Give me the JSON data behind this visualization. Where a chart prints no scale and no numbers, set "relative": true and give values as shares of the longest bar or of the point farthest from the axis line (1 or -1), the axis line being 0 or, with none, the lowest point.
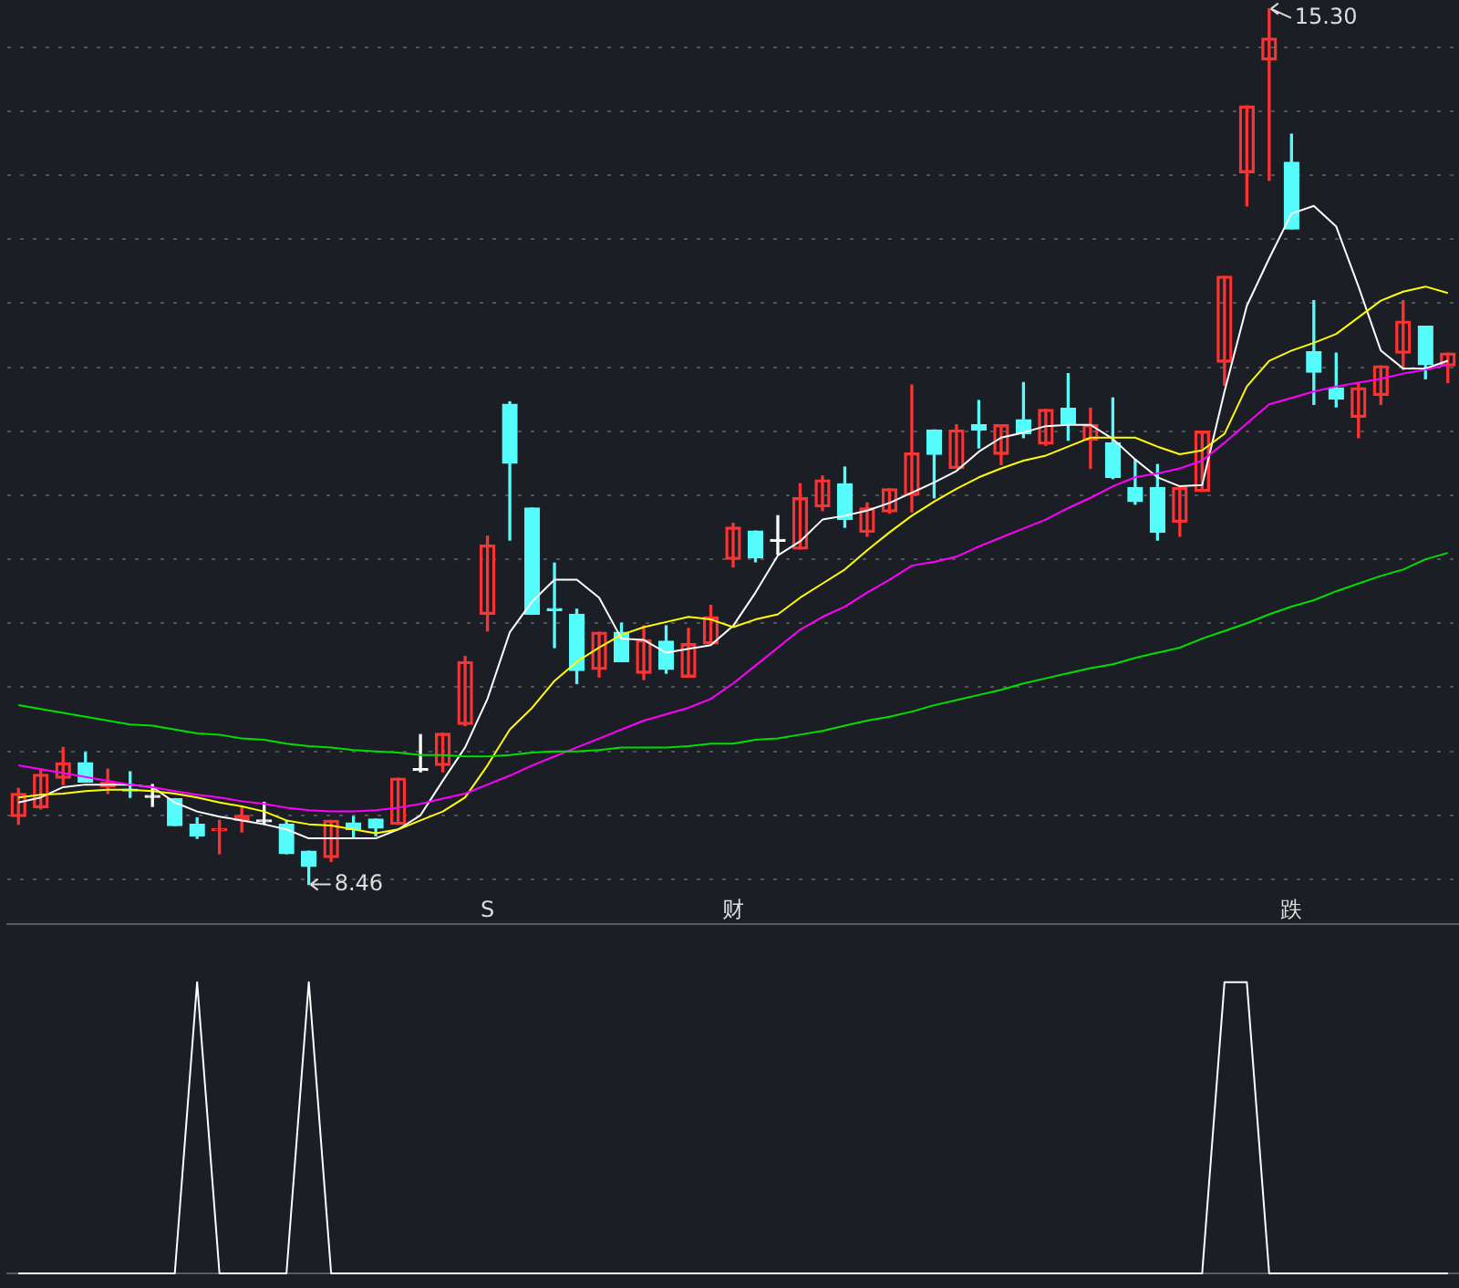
{
  "chart_data": [
    {
      "type": "candlestick",
      "categories": [
        null,
        null,
        null,
        null,
        null,
        null,
        null,
        null,
        null,
        null,
        null,
        null,
        null,
        null,
        null,
        null,
        null,
        null,
        null,
        null,
        null,
        null,
        null,
        null,
        null,
        null,
        null,
        null,
        null,
        null,
        null,
        null,
        null,
        null,
        null,
        null,
        null,
        null,
        null,
        null,
        null,
        null,
        null,
        null,
        null,
        null,
        null,
        null,
        null,
        null,
        null,
        null,
        null,
        null,
        null,
        null,
        null,
        null,
        null,
        null,
        null,
        null,
        null,
        null,
        null
      ],
      "ohlc": [
        [
          8.99,
          9.21,
          8.93,
          9.17
        ],
        [
          9.06,
          9.36,
          9.05,
          9.32
        ],
        [
          9.29,
          9.53,
          9.24,
          9.41
        ],
        [
          9.41,
          9.49,
          9.26,
          9.26
        ],
        [
          9.22,
          9.36,
          9.17,
          9.26
        ],
        [
          9.2,
          9.34,
          9.14,
          9.19
        ],
        [
          9.14,
          9.24,
          9.07,
          9.14
        ],
        [
          9.13,
          9.13,
          8.92,
          8.92
        ],
        [
          8.93,
          8.98,
          8.82,
          8.84
        ],
        [
          8.88,
          8.96,
          8.7,
          8.89
        ],
        [
          8.96,
          9.06,
          8.87,
          9.0
        ],
        [
          8.95,
          9.1,
          8.93,
          8.95
        ],
        [
          8.93,
          8.96,
          8.7,
          8.7
        ],
        [
          8.72,
          8.72,
          8.46,
          8.6
        ],
        [
          8.67,
          8.96,
          8.64,
          8.96
        ],
        [
          8.94,
          8.99,
          8.82,
          8.89
        ],
        [
          8.97,
          8.97,
          8.84,
          8.9
        ],
        [
          8.93,
          9.29,
          8.93,
          9.29
        ],
        [
          9.35,
          9.63,
          9.34,
          9.35
        ],
        [
          9.39,
          9.64,
          9.34,
          9.64
        ],
        [
          9.71,
          10.24,
          9.7,
          10.2
        ],
        [
          10.57,
          11.18,
          10.44,
          11.11
        ],
        [
          12.21,
          12.23,
          11.15,
          11.75
        ],
        [
          11.4,
          11.4,
          10.57,
          10.57
        ],
        [
          10.61,
          10.97,
          10.31,
          10.6
        ],
        [
          10.57,
          10.61,
          10.03,
          10.13
        ],
        [
          10.14,
          10.43,
          10.08,
          10.43
        ],
        [
          10.43,
          10.5,
          10.2,
          10.2
        ],
        [
          10.11,
          10.48,
          10.06,
          10.37
        ],
        [
          10.36,
          10.48,
          10.11,
          10.14
        ],
        [
          10.08,
          10.46,
          10.08,
          10.34
        ],
        [
          10.34,
          10.64,
          10.34,
          10.55
        ],
        [
          11.0,
          11.28,
          10.94,
          11.25
        ],
        [
          11.22,
          11.22,
          10.98,
          11.01
        ],
        [
          11.14,
          11.34,
          11.04,
          11.14
        ],
        [
          11.08,
          11.59,
          11.08,
          11.48
        ],
        [
          11.41,
          11.65,
          11.38,
          11.62
        ],
        [
          11.59,
          11.72,
          11.25,
          11.31
        ],
        [
          11.21,
          11.44,
          11.18,
          11.4
        ],
        [
          11.37,
          11.55,
          11.36,
          11.55
        ],
        [
          11.5,
          12.36,
          11.37,
          11.83
        ],
        [
          12.01,
          12.01,
          11.48,
          11.82
        ],
        [
          11.71,
          12.05,
          11.71,
          12.01
        ],
        [
          12.05,
          12.24,
          11.87,
          12.01
        ],
        [
          11.82,
          12.05,
          11.74,
          12.05
        ],
        [
          12.09,
          12.38,
          11.95,
          11.98
        ],
        [
          11.9,
          12.17,
          11.89,
          12.17
        ],
        [
          12.18,
          12.45,
          11.93,
          12.06
        ],
        [
          11.93,
          12.18,
          11.71,
          12.05
        ],
        [
          11.91,
          12.26,
          11.63,
          11.64
        ],
        [
          11.56,
          11.78,
          11.43,
          11.45
        ],
        [
          11.56,
          11.74,
          11.15,
          11.21
        ],
        [
          11.29,
          11.56,
          11.18,
          11.56
        ],
        [
          11.53,
          12.0,
          11.53,
          12.0
        ],
        [
          12.54,
          13.21,
          12.36,
          13.21
        ],
        [
          14.02,
          14.54,
          13.76,
          14.54
        ],
        [
          14.9,
          15.3,
          13.96,
          15.07
        ],
        [
          14.1,
          14.32,
          13.58,
          13.58
        ],
        [
          12.62,
          13.02,
          12.21,
          12.46
        ],
        [
          12.34,
          12.61,
          12.19,
          12.25
        ],
        [
          12.11,
          12.38,
          11.95,
          12.34
        ],
        [
          12.28,
          12.51,
          12.21,
          12.51
        ],
        [
          12.61,
          13.02,
          12.48,
          12.86
        ],
        [
          12.82,
          12.82,
          12.41,
          12.52
        ],
        [
          12.51,
          12.61,
          12.38,
          12.61
        ]
      ],
      "colors": [
        "#ff3232",
        "#ff3232",
        "#ff3232",
        "#54fcfc",
        "#ff3232",
        "#54fcfc",
        "#ffffff",
        "#54fcfc",
        "#54fcfc",
        "#ff3232",
        "#ff3232",
        "#ffffff",
        "#54fcfc",
        "#54fcfc",
        "#ff3232",
        "#54fcfc",
        "#54fcfc",
        "#ff3232",
        "#ffffff",
        "#ff3232",
        "#ff3232",
        "#ff3232",
        "#54fcfc",
        "#54fcfc",
        "#54fcfc",
        "#54fcfc",
        "#ff3232",
        "#54fcfc",
        "#ff3232",
        "#54fcfc",
        "#ff3232",
        "#ff3232",
        "#ff3232",
        "#54fcfc",
        "#ffffff",
        "#ff3232",
        "#ff3232",
        "#54fcfc",
        "#ff3232",
        "#ff3232",
        "#ff3232",
        "#54fcfc",
        "#ff3232",
        "#54fcfc",
        "#ff3232",
        "#54fcfc",
        "#ff3232",
        "#54fcfc",
        "#ff3232",
        "#54fcfc",
        "#54fcfc",
        "#54fcfc",
        "#ff3232",
        "#ff3232",
        "#ff3232",
        "#ff3232",
        "#ff3232",
        "#54fcfc",
        "#54fcfc",
        "#54fcfc",
        "#ff3232",
        "#ff3232",
        "#ff3232",
        "#54fcfc",
        "#ff3232"
      ],
      "series": [
        {
          "type": "line",
          "color": "#ffffff",
          "values": [
            9.1,
            9.14,
            9.22,
            9.24,
            9.24,
            9.24,
            9.22,
            9.1,
            9.03,
            8.99,
            8.96,
            8.93,
            8.89,
            8.82,
            8.82,
            8.82,
            8.82,
            8.89,
            9.0,
            9.27,
            9.53,
            9.91,
            10.43,
            10.67,
            10.84,
            10.84,
            10.7,
            10.38,
            10.37,
            10.27,
            10.3,
            10.33,
            10.48,
            10.74,
            11.03,
            11.14,
            11.31,
            11.34,
            11.38,
            11.44,
            11.52,
            11.6,
            11.69,
            11.84,
            11.95,
            11.99,
            12.04,
            12.05,
            12.05,
            11.94,
            11.78,
            11.64,
            11.57,
            11.58,
            12.31,
            12.98,
            13.35,
            13.7,
            13.76,
            13.6,
            13.13,
            12.63,
            12.49,
            12.49,
            12.55
          ]
        },
        {
          "type": "line",
          "color": "#ffff00",
          "values": [
            9.14,
            9.16,
            9.17,
            9.19,
            9.2,
            9.2,
            9.19,
            9.17,
            9.14,
            9.1,
            9.07,
            9.03,
            8.96,
            8.93,
            8.92,
            8.89,
            8.86,
            8.89,
            8.96,
            9.03,
            9.14,
            9.39,
            9.67,
            9.84,
            10.05,
            10.2,
            10.31,
            10.41,
            10.47,
            10.51,
            10.55,
            10.53,
            10.47,
            10.53,
            10.57,
            10.7,
            10.81,
            10.92,
            11.07,
            11.21,
            11.34,
            11.45,
            11.55,
            11.64,
            11.71,
            11.77,
            11.81,
            11.88,
            11.95,
            11.95,
            11.95,
            11.88,
            11.82,
            11.85,
            11.98,
            12.35,
            12.55,
            12.63,
            12.69,
            12.76,
            12.89,
            13.02,
            13.09,
            13.13,
            13.08
          ]
        },
        {
          "type": "line",
          "color": "#ff00ff",
          "values": [
            9.39,
            9.36,
            9.33,
            9.3,
            9.27,
            9.24,
            9.22,
            9.19,
            9.16,
            9.14,
            9.11,
            9.09,
            9.06,
            9.04,
            9.03,
            9.03,
            9.04,
            9.06,
            9.09,
            9.13,
            9.17,
            9.24,
            9.31,
            9.39,
            9.46,
            9.53,
            9.6,
            9.67,
            9.74,
            9.79,
            9.84,
            9.91,
            10.03,
            10.17,
            10.31,
            10.45,
            10.55,
            10.63,
            10.74,
            10.84,
            10.95,
            10.98,
            11.02,
            11.1,
            11.17,
            11.24,
            11.31,
            11.4,
            11.48,
            11.57,
            11.64,
            11.67,
            11.71,
            11.77,
            11.91,
            12.06,
            12.21,
            12.26,
            12.31,
            12.35,
            12.38,
            12.41,
            12.45,
            12.48,
            12.52
          ]
        },
        {
          "type": "line",
          "color": "#00e000",
          "values": [
            9.86,
            9.83,
            9.8,
            9.77,
            9.74,
            9.71,
            9.7,
            9.67,
            9.64,
            9.63,
            9.6,
            9.59,
            9.56,
            9.54,
            9.53,
            9.51,
            9.5,
            9.49,
            9.47,
            9.47,
            9.46,
            9.46,
            9.47,
            9.49,
            9.5,
            9.5,
            9.51,
            9.53,
            9.53,
            9.53,
            9.54,
            9.56,
            9.56,
            9.59,
            9.6,
            9.63,
            9.66,
            9.7,
            9.74,
            9.77,
            9.81,
            9.86,
            9.9,
            9.94,
            9.98,
            10.03,
            10.07,
            10.11,
            10.15,
            10.18,
            10.23,
            10.27,
            10.31,
            10.38,
            10.44,
            10.5,
            10.57,
            10.63,
            10.68,
            10.75,
            10.81,
            10.87,
            10.92,
            11.0,
            11.05
          ]
        }
      ],
      "yticks": [
        {
          "value": 8.5,
          "label": null
        },
        {
          "value": 9,
          "label": null
        },
        {
          "value": 9.5,
          "label": null
        },
        {
          "value": 10,
          "label": null
        },
        {
          "value": 10.5,
          "label": null
        },
        {
          "value": 11,
          "label": null
        },
        {
          "value": 11.5,
          "label": null
        },
        {
          "value": 12,
          "label": null
        },
        {
          "value": 12.5,
          "label": null
        },
        {
          "value": 13,
          "label": null
        },
        {
          "value": 13.5,
          "label": null
        },
        {
          "value": 14,
          "label": null
        },
        {
          "value": 14.5,
          "label": null
        },
        {
          "value": 15,
          "label": null
        }
      ],
      "grid": "y",
      "tick_labels": false,
      "annotations": [
        "15.30",
        "8.46"
      ]
    },
    {
      "type": "line",
      "relative": true,
      "tick_labels": "x",
      "categories": [
        null,
        null,
        null,
        null,
        null,
        null,
        null,
        null,
        null,
        null,
        null,
        null,
        null,
        null,
        null,
        null,
        null,
        null,
        null,
        null,
        null,
        "S",
        null,
        null,
        null,
        null,
        null,
        null,
        null,
        null,
        null,
        null,
        "财",
        null,
        null,
        null,
        null,
        null,
        null,
        null,
        null,
        null,
        null,
        null,
        null,
        null,
        null,
        null,
        null,
        null,
        null,
        null,
        null,
        null,
        null,
        null,
        null,
        "跌",
        null,
        null,
        null,
        null,
        null,
        null,
        null
      ],
      "series": [
        {
          "color": "#ffffff",
          "values": [
            0,
            0,
            0,
            0,
            0,
            0,
            0,
            0,
            1,
            0,
            0,
            0,
            0,
            1,
            0,
            0,
            0,
            0,
            0,
            0,
            0,
            0,
            0,
            0,
            0,
            0,
            0,
            0,
            0,
            0,
            0,
            0,
            0,
            0,
            0,
            0,
            0,
            0,
            0,
            0,
            0,
            0,
            0,
            0,
            0,
            0,
            0,
            0,
            0,
            0,
            0,
            0,
            0,
            0,
            1,
            1,
            0,
            0,
            0,
            0,
            0,
            0,
            0,
            0,
            0
          ]
        }
      ]
    }
  ]
}
